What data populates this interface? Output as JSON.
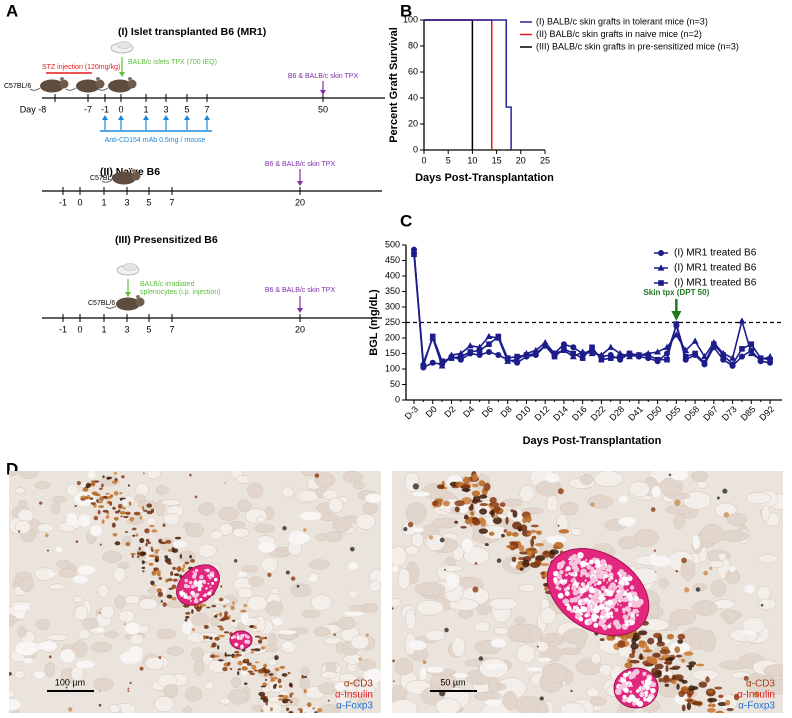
{
  "panel_a": {
    "label": "A",
    "islet": {
      "title": "(I) Islet transplanted B6 (MR1)",
      "strain": "C57BL/6",
      "stz": "STZ injection (120mg/kg)",
      "islet_tpx": "BALB/c islets TPX (700 IEQ)",
      "skin_tpx": "B6 & BALB/c skin TPX",
      "ticks": [
        "Day -8",
        "-7",
        "-1",
        "0",
        "1",
        "3",
        "5",
        "7",
        "50"
      ],
      "treatment": "Anti-CD154 mAb 0.5mg / mouse"
    },
    "naive": {
      "title": "(II) Naïve B6",
      "strain": "C57BL/6",
      "skin_tpx": "B6 & BALB/c skin TPX",
      "ticks": [
        "-1",
        "0",
        "1",
        "3",
        "5",
        "7",
        "20"
      ]
    },
    "presensitized": {
      "title": "(III) Presensitized B6",
      "splenocytes": [
        "BALB/c irradiated",
        "splenocytes (i.p. injection)"
      ],
      "strain": "C57BL/6",
      "skin_tpx": "B6 & BALB/c skin TPX",
      "ticks": [
        "-1",
        "0",
        "1",
        "3",
        "5",
        "7",
        "20"
      ]
    }
  },
  "chart_data": [
    {
      "type": "step",
      "panel_label": "B",
      "y_label": "Percent Graft Survival",
      "x_label": "Days Post-Transplantation",
      "xlim": [
        0,
        25
      ],
      "xticks": [
        0,
        5,
        10,
        15,
        20,
        25
      ],
      "ylim": [
        0,
        100
      ],
      "yticks": [
        0,
        20,
        40,
        60,
        80,
        100
      ],
      "series": [
        {
          "name": "(I) BALB/c skin grafts in tolerant mice (n=3)",
          "color": "#25259a",
          "x": [
            0,
            17,
            18
          ],
          "values": [
            100,
            33,
            0
          ]
        },
        {
          "name": "(II) BALB/c skin grafts in naive mice (n=2)",
          "color": "#e8191d",
          "x": [
            0,
            14
          ],
          "values": [
            100,
            0
          ]
        },
        {
          "name": "(III) BALB/c skin grafts in pre-sensitized mice (n=3)",
          "color": "#000000",
          "x": [
            0,
            10
          ],
          "values": [
            100,
            0
          ]
        }
      ]
    },
    {
      "type": "line",
      "panel_label": "C",
      "y_label": "BGL (mg/dL)",
      "x_label": "Days Post-Transplantation",
      "categories": [
        "D-3",
        null,
        "D0",
        null,
        "D2",
        null,
        "D4",
        null,
        "D6",
        null,
        "D8",
        null,
        "D10",
        null,
        "D12",
        null,
        "D14",
        null,
        "D16",
        null,
        "D22",
        null,
        "D28",
        null,
        "D41",
        null,
        "D50",
        null,
        "D55",
        null,
        "D58",
        null,
        "D67",
        null,
        "D73",
        null,
        "D85",
        null,
        "D92"
      ],
      "ylim": [
        0,
        500
      ],
      "yticks": [
        0,
        50,
        100,
        150,
        200,
        250,
        300,
        350,
        400,
        450,
        500
      ],
      "hline": 250,
      "annotation": "Skin tpx (DPT 50)",
      "series": [
        {
          "name": "(I) MR1 treated B6",
          "color": "#1c1c8a",
          "marker": "circle",
          "values": [
            485,
            105,
            120,
            115,
            140,
            130,
            150,
            145,
            155,
            145,
            130,
            120,
            140,
            145,
            175,
            150,
            180,
            170,
            150,
            160,
            140,
            145,
            130,
            150,
            140,
            135,
            125,
            150,
            240,
            130,
            145,
            115,
            170,
            130,
            110,
            140,
            160,
            125,
            120
          ]
        },
        {
          "name": "(I) MR1 treated B6",
          "color": "#1c1c8a",
          "marker": "triangle",
          "values": [
            480,
            120,
            200,
            110,
            145,
            150,
            175,
            170,
            205,
            200,
            125,
            130,
            150,
            160,
            185,
            150,
            160,
            140,
            155,
            150,
            145,
            170,
            150,
            140,
            145,
            150,
            155,
            170,
            210,
            160,
            190,
            140,
            185,
            150,
            135,
            255,
            150,
            130,
            140
          ]
        },
        {
          "name": "(I) MR1 treated B6",
          "color": "#1c1c8a",
          "marker": "square",
          "values": [
            470,
            110,
            205,
            125,
            135,
            140,
            155,
            160,
            180,
            205,
            135,
            140,
            145,
            150,
            175,
            140,
            165,
            150,
            135,
            170,
            130,
            135,
            140,
            150,
            145,
            145,
            130,
            130,
            245,
            140,
            150,
            120,
            180,
            145,
            115,
            165,
            180,
            135,
            130
          ]
        }
      ]
    }
  ],
  "panel_d": {
    "label": "D",
    "micrographs": [
      {
        "scale_bar": "100 µm",
        "stains": [
          "α-CD3",
          "α-Insulin",
          "α-Foxp3"
        ]
      },
      {
        "scale_bar": "50 µm",
        "stains": [
          "α-CD3",
          "α-Insulin",
          "α-Foxp3"
        ]
      }
    ]
  }
}
